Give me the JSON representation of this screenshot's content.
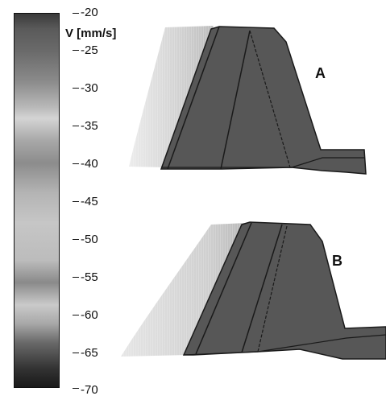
{
  "colorbar": {
    "unit_label": "V [mm/s]",
    "ticks": [
      "-20",
      "-25",
      "-30",
      "-35",
      "-40",
      "-45",
      "-50",
      "-55",
      "-60",
      "-65",
      "-70"
    ],
    "gradient_colors": [
      "#3a3a3a",
      "#d4d4d4",
      "#8c8c8c",
      "#c6c6c6",
      "#8a8a8a",
      "#cacaca",
      "#1a1a1a"
    ]
  },
  "panels": {
    "top": {
      "label": "A"
    },
    "bottom": {
      "label": "B"
    }
  },
  "colors": {
    "surface_dark": "#575757",
    "surface_light": "#d8d8d8",
    "outline": "#1a1a1a"
  }
}
